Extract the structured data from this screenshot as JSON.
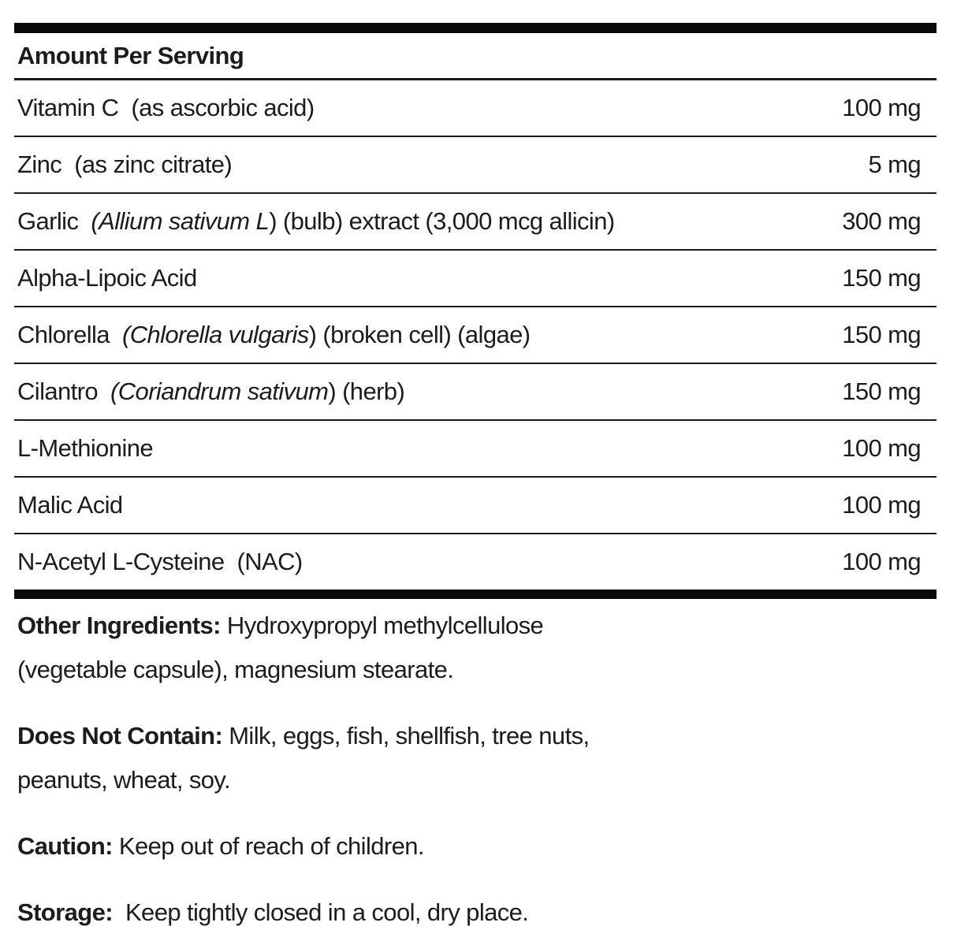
{
  "label": {
    "header": "Amount Per Serving",
    "rows": [
      {
        "parts": [
          {
            "t": "Vitamin C  (as ascorbic acid)",
            "i": false
          }
        ],
        "amount": "100 mg"
      },
      {
        "parts": [
          {
            "t": "Zinc  (as zinc citrate)",
            "i": false
          }
        ],
        "amount": "5 mg"
      },
      {
        "parts": [
          {
            "t": "Garlic  ",
            "i": false
          },
          {
            "t": "(Allium sativum L",
            "i": true
          },
          {
            "t": ") (bulb) extract (3,000 mcg allicin)",
            "i": false
          }
        ],
        "amount": "300 mg"
      },
      {
        "parts": [
          {
            "t": "Alpha-Lipoic Acid",
            "i": false
          }
        ],
        "amount": "150 mg"
      },
      {
        "parts": [
          {
            "t": "Chlorella  ",
            "i": false
          },
          {
            "t": "(Chlorella vulgaris",
            "i": true
          },
          {
            "t": ") (broken cell) (algae)",
            "i": false
          }
        ],
        "amount": "150 mg"
      },
      {
        "parts": [
          {
            "t": "Cilantro  ",
            "i": false
          },
          {
            "t": "(Coriandrum sativum",
            "i": true
          },
          {
            "t": ") (herb)",
            "i": false
          }
        ],
        "amount": "150 mg"
      },
      {
        "parts": [
          {
            "t": "L-Methionine",
            "i": false
          }
        ],
        "amount": "100 mg"
      },
      {
        "parts": [
          {
            "t": "Malic Acid",
            "i": false
          }
        ],
        "amount": "100 mg"
      },
      {
        "parts": [
          {
            "t": "N-Acetyl L-Cysteine  (NAC)",
            "i": false
          }
        ],
        "amount": "100 mg"
      }
    ],
    "paragraphs": [
      {
        "name": "other-ingredients",
        "bold": "Other Ingredients:",
        "lines": [
          "Hydroxypropyl methylcellulose",
          "(vegetable capsule), magnesium stearate."
        ]
      },
      {
        "name": "does-not-contain",
        "bold": "Does Not Contain:",
        "lines": [
          "Milk, eggs, fish, shellfish, tree nuts,",
          "peanuts, wheat, soy."
        ]
      },
      {
        "name": "caution",
        "bold": "Caution:",
        "lines": [
          "Keep out of reach of children."
        ]
      },
      {
        "name": "storage",
        "bold": "Storage:",
        "lines": [
          " Keep tightly closed in a cool, dry place."
        ]
      }
    ],
    "colors": {
      "text": "#1b1c1e",
      "rule": "#1a1a1a",
      "bar": "#0a0a0a",
      "background": "#ffffff"
    }
  }
}
